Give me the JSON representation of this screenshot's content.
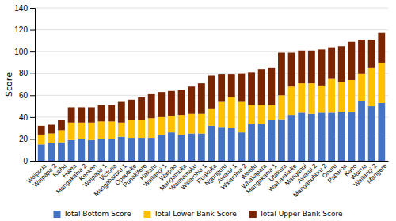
{
  "chart_data": {
    "type": "bar",
    "stacked": true,
    "ylabel": "Score",
    "categories": [
      "Waipoua",
      "Waipapa 2",
      "Kaihu",
      "Hatea",
      "Mangakahia 2",
      "Kenken",
      "Waipapa 1",
      "Victoria",
      "Mangaharuru 1",
      "Opouteke",
      "Punakitere",
      "Hakaru",
      "Waitangi 1",
      "Waipao",
      "Mangamuka",
      "Waimamaku",
      "Waiarohia 1",
      "Ruakaka",
      "Ngunguru",
      "Awarui 1",
      "Waiarohia 2",
      "Waiotu",
      "Whakapara",
      "Mangakahia 1",
      "Utakura",
      "Waiharakeke",
      "Manganui",
      "Awarui 2",
      "Mangahuhuru 2",
      "Onuru",
      "Paparoa",
      "Kaeo",
      "Wairua",
      "Waitangi 2",
      "Mangere"
    ],
    "series": [
      {
        "name": "Total Bottom Score",
        "color": "#4472C4",
        "values": [
          15,
          16,
          17,
          19,
          20,
          19,
          20,
          20,
          22,
          21,
          21,
          21,
          24,
          26,
          24,
          25,
          25,
          32,
          31,
          30,
          26,
          34,
          34,
          37,
          38,
          42,
          44,
          43,
          44,
          44,
          45,
          45,
          55,
          50,
          53
        ]
      },
      {
        "name": "Total Lower Bank Score",
        "color": "#FFC000",
        "values": [
          9,
          9,
          11,
          16,
          15,
          16,
          16,
          16,
          13,
          16,
          16,
          18,
          16,
          15,
          18,
          18,
          18,
          16,
          23,
          28,
          28,
          17,
          17,
          14,
          22,
          26,
          27,
          28,
          25,
          31,
          27,
          29,
          25,
          35,
          37
        ]
      },
      {
        "name": "Total Upper Bank Score",
        "color": "#7B2400",
        "values": [
          8,
          8,
          9,
          14,
          14,
          14,
          15,
          15,
          19,
          19,
          21,
          22,
          23,
          23,
          23,
          25,
          28,
          30,
          25,
          21,
          26,
          30,
          33,
          34,
          39,
          31,
          30,
          30,
          33,
          29,
          33,
          35,
          31,
          26,
          27
        ]
      }
    ],
    "ylim": [
      0,
      140
    ],
    "yticks": [
      0,
      20,
      40,
      60,
      80,
      100,
      120,
      140
    ],
    "grid": true,
    "legend": "bottom"
  }
}
